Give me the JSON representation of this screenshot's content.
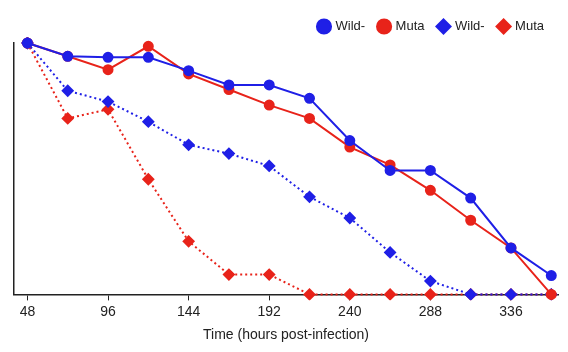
{
  "chart_data": {
    "type": "line",
    "x_label": "Time (hours post-infection)",
    "xlim": [
      40,
      364
    ],
    "xticks": [
      48,
      96,
      144,
      192,
      240,
      288,
      336
    ],
    "ylim": [
      0,
      100
    ],
    "tick_labels": "x",
    "grid": false,
    "legend": "upper right",
    "x": [
      48,
      72,
      96,
      120,
      144,
      168,
      192,
      216,
      240,
      264,
      288,
      312,
      336,
      360
    ],
    "series": [
      {
        "name": "Wild-",
        "color": "#1f1fe6",
        "marker": "circle",
        "line_style": "solid",
        "values": [
          100,
          94.7,
          94.3,
          94.3,
          89,
          83.3,
          83.3,
          78,
          61.2,
          49.3,
          49.3,
          38.3,
          18.5,
          7.5
        ]
      },
      {
        "name": "Muta",
        "color": "#e8231a",
        "marker": "circle",
        "line_style": "solid",
        "values": [
          100,
          94.7,
          89.4,
          98.7,
          87.7,
          81.5,
          75.3,
          70,
          58.6,
          51.5,
          41.4,
          29.5,
          18.5,
          0
        ]
      },
      {
        "name": "Wild-",
        "color": "#1f1fe6",
        "marker": "diamond",
        "line_style": "dotted",
        "values": [
          100,
          81,
          76.7,
          68.7,
          59.5,
          56,
          51.1,
          38.8,
          30.4,
          16.7,
          5.3,
          0,
          0,
          0
        ]
      },
      {
        "name": "Muta",
        "color": "#e8231a",
        "marker": "diamond",
        "line_style": "dotted",
        "values": [
          100,
          70,
          73.6,
          45.8,
          21.1,
          7.9,
          7.9,
          0,
          0,
          0,
          0,
          0,
          0,
          0
        ]
      }
    ]
  }
}
